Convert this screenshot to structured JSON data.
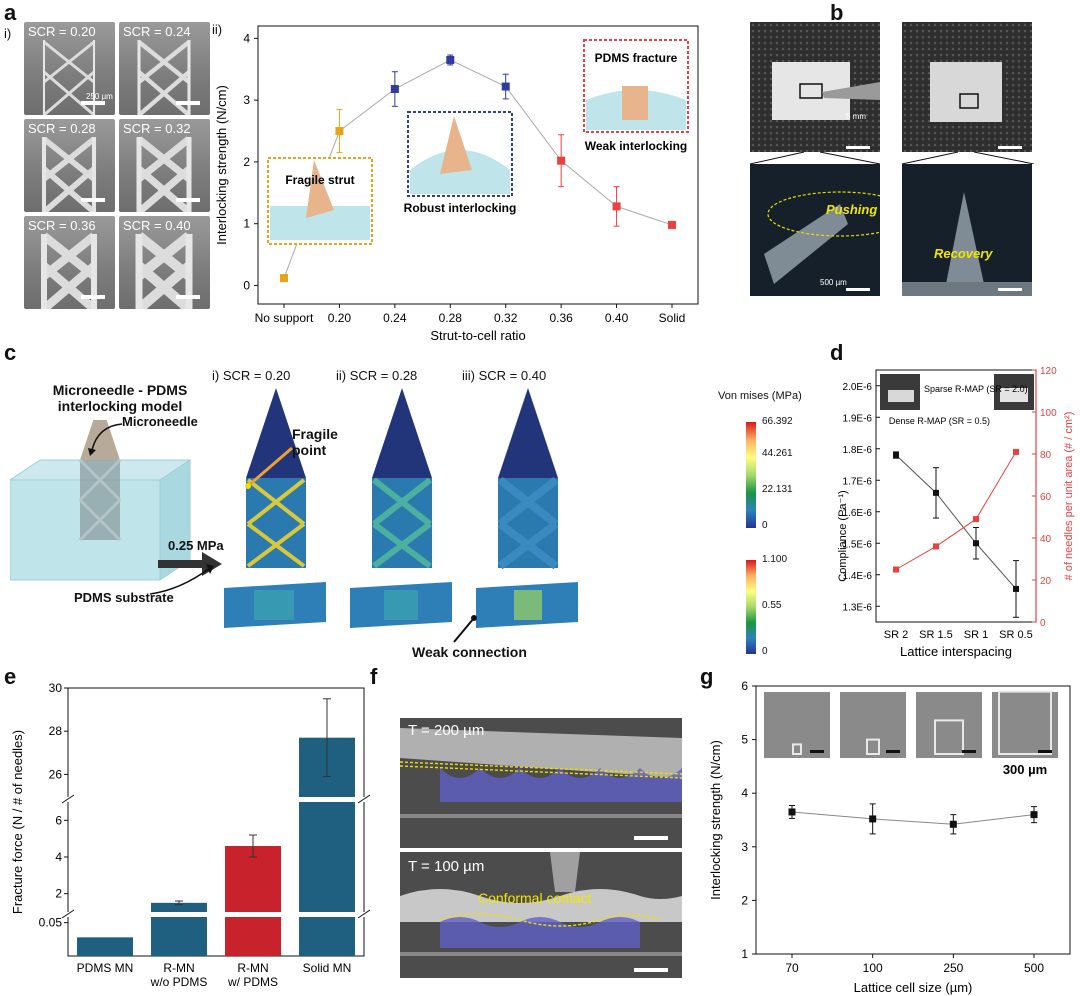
{
  "panel_letters": {
    "a": "a",
    "b": "b",
    "c": "c",
    "d": "d",
    "e": "e",
    "f": "f",
    "g": "g"
  },
  "panel_a": {
    "sub_i": "i)",
    "sub_ii": "ii)",
    "sem_labels": [
      "SCR = 0.20",
      "SCR = 0.24",
      "SCR = 0.28",
      "SCR = 0.32",
      "SCR = 0.36",
      "SCR = 0.40"
    ],
    "scale_text": "250 µm",
    "insets": {
      "fragile": "Fragile strut",
      "robust": "Robust interlocking",
      "fracture": "PDMS fracture",
      "weak": "Weak interlocking"
    }
  },
  "panel_b": {
    "scale_top": "5 mm",
    "scale_bottom": "500 µm",
    "pushing": "Pushing",
    "recovery": "Recovery"
  },
  "panel_c": {
    "title_line1": "Microneedle - PDMS",
    "title_line2": "interlocking model",
    "microneedle": "Microneedle",
    "pressure": "0.25 MPa",
    "pdms": "PDMS substrate",
    "cases": [
      "i) SCR = 0.20",
      "ii) SCR = 0.28",
      "iii) SCR = 0.40"
    ],
    "fragile_point_1": "Fragile",
    "fragile_point_2": "point",
    "weak_connection": "Weak connection",
    "colorbar_title": "Von mises (MPa)",
    "colorbar1_ticks": [
      "66.392",
      "44.261",
      "22.131",
      "0"
    ],
    "colorbar2_ticks": [
      "1.100",
      "0.55",
      "0"
    ]
  },
  "panel_f": {
    "t200": "T = 200 µm",
    "t100": "T = 100 µm",
    "conformal": "Conformal contact"
  },
  "panel_g": {
    "scale_text": "300 µm"
  },
  "colors": {
    "orange": "#e8a317",
    "blue": "#2f3c9e",
    "red": "#e84141",
    "teal": "#1f5f80",
    "bar_red": "#c8232c",
    "black": "#111111"
  },
  "chart_data": [
    {
      "id": "a-ii",
      "type": "scatter",
      "categories": [
        "No support",
        "0.20",
        "0.24",
        "0.28",
        "0.32",
        "0.36",
        "0.40",
        "Solid"
      ],
      "values": [
        0.12,
        2.5,
        3.18,
        3.65,
        3.22,
        2.02,
        1.28,
        0.98
      ],
      "errors": [
        0.0,
        0.35,
        0.28,
        0.08,
        0.2,
        0.42,
        0.32,
        0.05
      ],
      "point_colors": [
        "#e8a317",
        "#e8a317",
        "#2f3c9e",
        "#2f3c9e",
        "#2f3c9e",
        "#e84141",
        "#e84141",
        "#e84141"
      ],
      "xlabel": "Strut-to-cell ratio",
      "ylabel": "Interlocking strength (N/cm)",
      "ylim": [
        -0.3,
        4.2
      ],
      "yticks": [
        "0",
        "1",
        "2",
        "3",
        "4"
      ]
    },
    {
      "id": "d",
      "type": "line",
      "categories": [
        "SR 2",
        "SR 1.5",
        "SR 1",
        "SR 0.5"
      ],
      "series": [
        {
          "name": "Compliance",
          "axis": "left",
          "values": [
            1.78e-06,
            1.66e-06,
            1.5e-06,
            1.355e-06
          ],
          "errors": [
            1e-08,
            8e-08,
            5e-08,
            9e-08
          ],
          "color": "#111111"
        },
        {
          "name": "# of needles per unit area",
          "axis": "right",
          "values": [
            25,
            36,
            49,
            81
          ],
          "color": "#e84141"
        }
      ],
      "xlabel": "Lattice interspacing",
      "ylabel_left": "Compliance (Pa⁻¹)",
      "ylabel_right": "# of needles per unit area (# / cm²)",
      "ylim_left": [
        1.25e-06,
        2.05e-06
      ],
      "ylim_right": [
        0,
        120
      ],
      "yticks_left": [
        "1.3E-6",
        "1.4E-6",
        "1.5E-6",
        "1.6E-6",
        "1.7E-6",
        "1.8E-6",
        "1.9E-6",
        "2.0E-6"
      ],
      "yticks_right": [
        "0",
        "20",
        "40",
        "60",
        "80",
        "100",
        "120"
      ],
      "annot_sparse": "Sparse R-MAP (SR = 2.0)",
      "annot_dense": "Dense R-MAP (SR = 0.5)"
    },
    {
      "id": "e",
      "type": "bar",
      "categories": [
        "PDMS MN",
        "R-MN\nw/o PDMS",
        "R-MN\nw/ PDMS",
        "Solid MN"
      ],
      "values": [
        0.028,
        1.5,
        4.6,
        27.7
      ],
      "errors": [
        0.0,
        0.1,
        0.6,
        1.8
      ],
      "bar_colors": [
        "#1f5f80",
        "#1f5f80",
        "#c8232c",
        "#1f5f80"
      ],
      "ylabel": "Fracture force (N / # of needles)",
      "yticks": [
        "0.05",
        "2",
        "4",
        "6",
        "26",
        "28",
        "30"
      ],
      "broken_axis": true
    },
    {
      "id": "g",
      "type": "line",
      "categories": [
        "70",
        "100",
        "250",
        "500"
      ],
      "values": [
        3.65,
        3.52,
        3.42,
        3.6
      ],
      "errors": [
        0.12,
        0.28,
        0.18,
        0.15
      ],
      "xlabel": "Lattice cell size (µm)",
      "ylabel": "Interlocking strength (N/cm)",
      "ylim": [
        1,
        6
      ],
      "yticks": [
        "1",
        "2",
        "3",
        "4",
        "5",
        "6"
      ]
    }
  ]
}
